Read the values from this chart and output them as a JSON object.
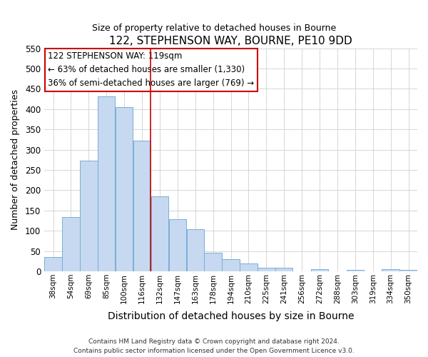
{
  "title": "122, STEPHENSON WAY, BOURNE, PE10 9DD",
  "subtitle": "Size of property relative to detached houses in Bourne",
  "xlabel": "Distribution of detached houses by size in Bourne",
  "ylabel": "Number of detached properties",
  "bar_labels": [
    "38sqm",
    "54sqm",
    "69sqm",
    "85sqm",
    "100sqm",
    "116sqm",
    "132sqm",
    "147sqm",
    "163sqm",
    "178sqm",
    "194sqm",
    "210sqm",
    "225sqm",
    "241sqm",
    "256sqm",
    "272sqm",
    "288sqm",
    "303sqm",
    "319sqm",
    "334sqm",
    "350sqm"
  ],
  "bar_values": [
    35,
    133,
    272,
    432,
    405,
    323,
    184,
    128,
    103,
    45,
    30,
    20,
    8,
    8,
    0,
    5,
    0,
    3,
    0,
    5,
    3
  ],
  "bar_color": "#c6d9f0",
  "bar_edge_color": "#7badd6",
  "vline_position": 5.5,
  "vline_color": "#cc0000",
  "ylim": [
    0,
    550
  ],
  "yticks": [
    0,
    50,
    100,
    150,
    200,
    250,
    300,
    350,
    400,
    450,
    500,
    550
  ],
  "annotation_title": "122 STEPHENSON WAY: 119sqm",
  "annotation_line1": "← 63% of detached houses are smaller (1,330)",
  "annotation_line2": "36% of semi-detached houses are larger (769) →",
  "annotation_box_color": "#ffffff",
  "annotation_box_edge": "#cc0000",
  "footer1": "Contains HM Land Registry data © Crown copyright and database right 2024.",
  "footer2": "Contains public sector information licensed under the Open Government Licence v3.0."
}
